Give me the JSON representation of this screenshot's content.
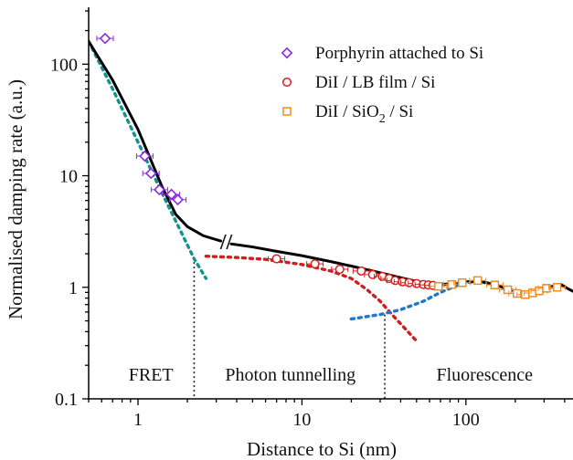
{
  "chart_data": {
    "type": "scatter",
    "xlabel": "Distance to Si (nm)",
    "ylabel": "Normalised damping rate (a.u.)",
    "xscale": "log",
    "yscale": "log",
    "xlim": [
      0.5,
      450
    ],
    "ylim": [
      0.1,
      300
    ],
    "xticks": [
      1,
      10,
      100
    ],
    "xtick_labels": [
      "1",
      "10",
      "100"
    ],
    "yticks": [
      0.1,
      1,
      10,
      100
    ],
    "ytick_labels": [
      "0.1",
      "1",
      "10",
      "100"
    ],
    "grid": false,
    "legend_position": "top-right",
    "series": [
      {
        "name": "Porphyrin attached to Si",
        "marker": "diamond",
        "color": "#8a2be2",
        "x": [
          0.63,
          1.1,
          1.2,
          1.35,
          1.6,
          1.75
        ],
        "y": [
          170,
          15,
          10.5,
          7.5,
          6.8,
          6.1
        ]
      },
      {
        "name": "DiI / LB film / Si",
        "marker": "circle",
        "color": "#d62020",
        "x": [
          7,
          12,
          17,
          23,
          27,
          31,
          34,
          37,
          41,
          45,
          50,
          55,
          59,
          63
        ],
        "y": [
          1.8,
          1.62,
          1.45,
          1.4,
          1.3,
          1.25,
          1.2,
          1.15,
          1.12,
          1.1,
          1.08,
          1.06,
          1.05,
          1.04
        ]
      },
      {
        "name": "DiI / SiO2 / Si",
        "legend_label_main": "DiI / SiO",
        "legend_label_sub": "2",
        "legend_label_tail": " / Si",
        "marker": "square",
        "color": "#f08a24",
        "x": [
          68,
          82,
          95,
          118,
          150,
          180,
          205,
          230,
          255,
          280,
          310,
          360
        ],
        "y": [
          1.02,
          1.06,
          1.1,
          1.15,
          1.05,
          0.95,
          0.88,
          0.86,
          0.89,
          0.93,
          0.98,
          1.0
        ]
      }
    ],
    "curves": [
      {
        "name": "model-total",
        "style": "solid",
        "color": "#000000",
        "x": [
          0.5,
          0.7,
          1.0,
          1.4,
          1.7,
          2.0,
          2.5,
          3.2
        ],
        "y": [
          160,
          72,
          26,
          8.0,
          4.5,
          3.5,
          2.9,
          2.6
        ]
      },
      {
        "name": "model-total-continued",
        "style": "solid",
        "color": "#000000",
        "x": [
          3.7,
          5,
          7,
          10,
          15,
          20,
          30,
          40,
          50,
          60,
          70,
          85,
          100,
          120,
          150,
          180,
          220,
          270,
          320,
          380,
          420,
          450
        ],
        "y": [
          2.45,
          2.3,
          2.1,
          1.92,
          1.7,
          1.55,
          1.35,
          1.22,
          1.13,
          1.08,
          1.06,
          1.08,
          1.12,
          1.14,
          1.06,
          0.96,
          0.9,
          0.92,
          1.0,
          1.06,
          0.97,
          0.92
        ]
      },
      {
        "name": "FRET",
        "style": "dotted",
        "color": "#13938f",
        "x": [
          0.5,
          0.7,
          1.0,
          1.4,
          1.8,
          2.2,
          2.6
        ],
        "y": [
          160,
          60,
          20,
          7,
          3.3,
          1.8,
          1.2
        ]
      },
      {
        "name": "Photon tunnelling",
        "style": "dotted",
        "color": "#cc1f1f",
        "x": [
          2.6,
          4,
          6,
          10,
          15,
          20,
          25,
          30,
          35,
          40,
          50
        ],
        "y": [
          1.9,
          1.85,
          1.78,
          1.6,
          1.4,
          1.2,
          0.95,
          0.75,
          0.58,
          0.47,
          0.33
        ]
      },
      {
        "name": "Fluorescence",
        "style": "dotted",
        "color": "#1e78d0",
        "x": [
          20,
          30,
          40,
          55,
          70,
          90,
          110,
          130
        ],
        "y": [
          0.52,
          0.57,
          0.63,
          0.75,
          0.9,
          1.05,
          1.12,
          1.1
        ]
      }
    ],
    "boundaries": [
      2.2,
      32
    ],
    "regions": [
      {
        "label": "FRET",
        "x": 1.2
      },
      {
        "label": "Photon tunnelling",
        "x": 8.5
      },
      {
        "label": "Fluorescence",
        "x": 130
      }
    ],
    "axis_break_label": "//"
  }
}
